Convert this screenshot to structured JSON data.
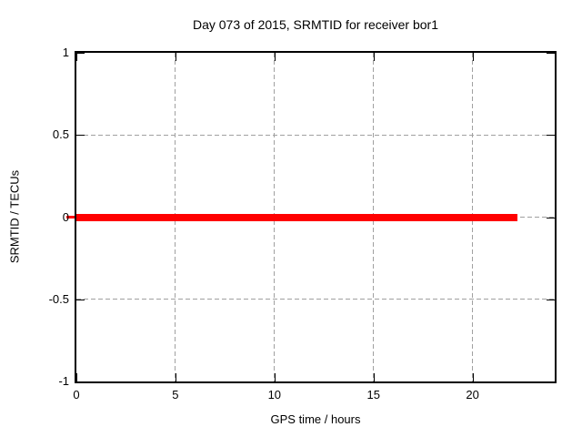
{
  "chart_data": {
    "type": "line",
    "title": "Day 073 of 2015, SRMTID for receiver bor1",
    "xlabel": "GPS time / hours",
    "ylabel": "SRMTID / TECUs",
    "xlim": [
      0,
      24.15
    ],
    "ylim": [
      -1,
      1
    ],
    "xticks": [
      0,
      5,
      10,
      15,
      20
    ],
    "yticks": [
      -1,
      -0.5,
      0,
      0.5,
      1
    ],
    "grid": true,
    "legend": "none",
    "series": [
      {
        "name": "SRMTID",
        "color": "#ff0000",
        "thickness_px": 8,
        "x": [
          0,
          22.25
        ],
        "y": [
          0,
          0
        ]
      }
    ]
  },
  "colors": {
    "background": "#ffffff",
    "axis": "#000000",
    "grid": "#a0a0a0",
    "text": "#000000",
    "series_red": "#ff0000"
  }
}
